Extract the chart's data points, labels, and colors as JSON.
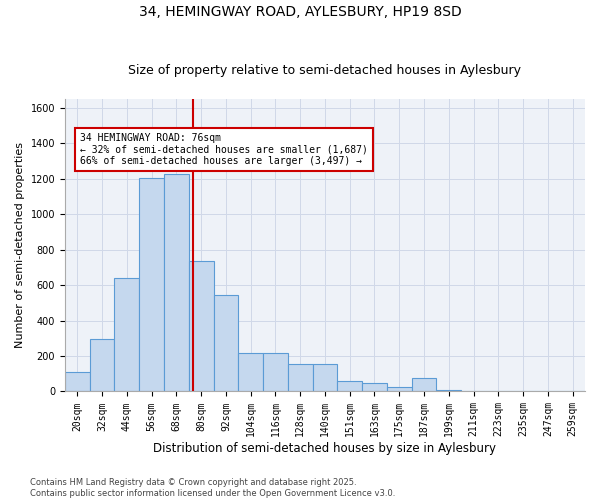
{
  "title1": "34, HEMINGWAY ROAD, AYLESBURY, HP19 8SD",
  "title2": "Size of property relative to semi-detached houses in Aylesbury",
  "xlabel": "Distribution of semi-detached houses by size in Aylesbury",
  "ylabel": "Number of semi-detached properties",
  "categories": [
    "20sqm",
    "32sqm",
    "44sqm",
    "56sqm",
    "68sqm",
    "80sqm",
    "92sqm",
    "104sqm",
    "116sqm",
    "128sqm",
    "140sqm",
    "151sqm",
    "163sqm",
    "175sqm",
    "187sqm",
    "199sqm",
    "211sqm",
    "223sqm",
    "235sqm",
    "247sqm",
    "259sqm"
  ],
  "values": [
    110,
    295,
    640,
    1205,
    1225,
    735,
    545,
    215,
    215,
    155,
    155,
    60,
    50,
    25,
    75,
    10,
    5,
    0,
    5,
    0,
    5
  ],
  "bar_color": "#c5d8ee",
  "bar_edge_color": "#5b9bd5",
  "bar_width": 1.0,
  "vline_x": 3.67,
  "vline_color": "#cc0000",
  "annotation_text": "34 HEMINGWAY ROAD: 76sqm\n← 32% of semi-detached houses are smaller (1,687)\n66% of semi-detached houses are larger (3,497) →",
  "ylim": [
    0,
    1650
  ],
  "yticks": [
    0,
    200,
    400,
    600,
    800,
    1000,
    1200,
    1400,
    1600
  ],
  "grid_color": "#d0d8e8",
  "bg_color": "#eef2f8",
  "footer": "Contains HM Land Registry data © Crown copyright and database right 2025.\nContains public sector information licensed under the Open Government Licence v3.0.",
  "title1_fontsize": 10,
  "title2_fontsize": 9,
  "tick_fontsize": 7,
  "ylabel_fontsize": 8,
  "xlabel_fontsize": 8.5,
  "footer_fontsize": 6
}
